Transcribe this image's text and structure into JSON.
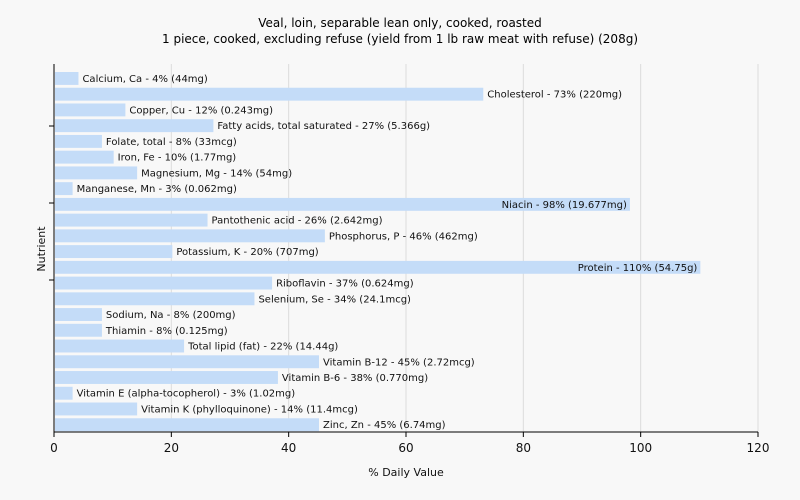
{
  "chart_data": {
    "type": "bar",
    "orientation": "horizontal",
    "title": "Veal, loin, separable lean only, cooked, roasted",
    "subtitle": "1 piece, cooked, excluding refuse (yield from 1 lb raw meat with refuse) (208g)",
    "xlabel": "% Daily Value",
    "ylabel": "Nutrient",
    "xlim": [
      0,
      120
    ],
    "xticks": [
      "0",
      "20",
      "40",
      "60",
      "80",
      "100",
      "120"
    ],
    "grid": true,
    "bar_color": "#c4dcf8",
    "categories": [
      "Calcium, Ca",
      "Cholesterol",
      "Copper, Cu",
      "Fatty acids, total saturated",
      "Folate, total",
      "Iron, Fe",
      "Magnesium, Mg",
      "Manganese, Mn",
      "Niacin",
      "Pantothenic acid",
      "Phosphorus, P",
      "Potassium, K",
      "Protein",
      "Riboflavin",
      "Selenium, Se",
      "Sodium, Na",
      "Thiamin",
      "Total lipid (fat)",
      "Vitamin B-12",
      "Vitamin B-6",
      "Vitamin E (alpha-tocopherol)",
      "Vitamin K (phylloquinone)",
      "Zinc, Zn"
    ],
    "values": [
      4,
      73,
      12,
      27,
      8,
      10,
      14,
      3,
      98,
      26,
      46,
      20,
      110,
      37,
      34,
      8,
      8,
      22,
      45,
      38,
      3,
      14,
      45
    ],
    "labels": [
      "Calcium, Ca - 4% (44mg)",
      "Cholesterol - 73% (220mg)",
      "Copper, Cu - 12% (0.243mg)",
      "Fatty acids, total saturated - 27% (5.366g)",
      "Folate, total - 8% (33mcg)",
      "Iron, Fe - 10% (1.77mg)",
      "Magnesium, Mg - 14% (54mg)",
      "Manganese, Mn - 3% (0.062mg)",
      "Niacin - 98% (19.677mg)",
      "Pantothenic acid - 26% (2.642mg)",
      "Phosphorus, P - 46% (462mg)",
      "Potassium, K - 20% (707mg)",
      "Protein - 110% (54.75g)",
      "Riboflavin - 37% (0.624mg)",
      "Selenium, Se - 34% (24.1mcg)",
      "Sodium, Na - 8% (200mg)",
      "Thiamin - 8% (0.125mg)",
      "Total lipid (fat) - 22% (14.44g)",
      "Vitamin B-12 - 45% (2.72mcg)",
      "Vitamin B-6 - 38% (0.770mg)",
      "Vitamin E (alpha-tocopherol) - 3% (1.02mg)",
      "Vitamin K (phylloquinone) - 14% (11.4mcg)",
      "Zinc, Zn - 45% (6.74mg)"
    ]
  }
}
